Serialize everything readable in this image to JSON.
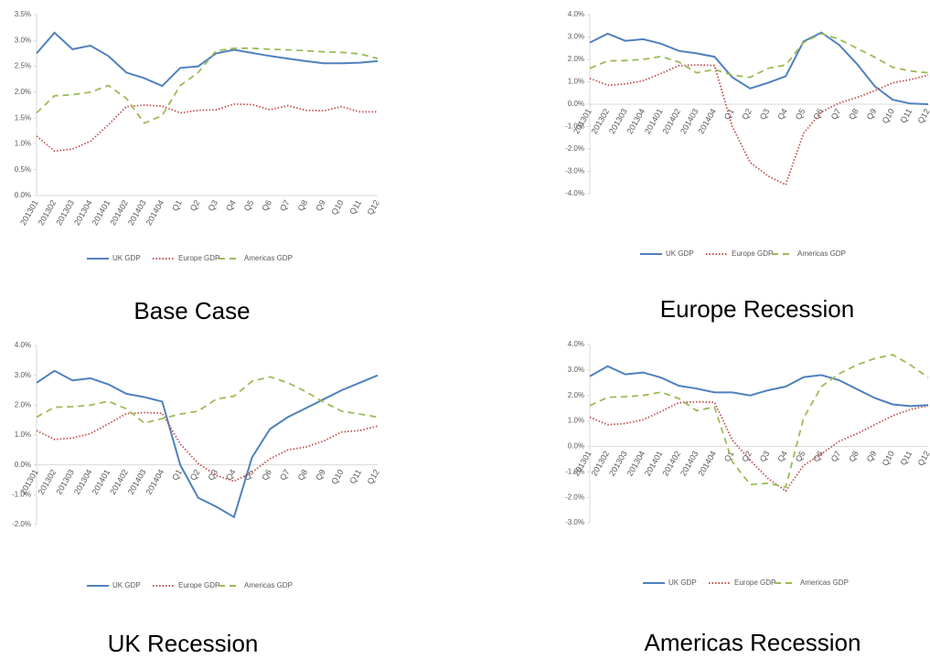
{
  "chart_data": [
    {
      "type": "line",
      "title": "Base Case",
      "categories": [
        "201301",
        "201302",
        "201303",
        "201304",
        "201401",
        "201402",
        "201403",
        "201404",
        "Q1",
        "Q2",
        "Q3",
        "Q4",
        "Q5",
        "Q6",
        "Q7",
        "Q8",
        "Q9",
        "Q10",
        "Q11",
        "Q12"
      ],
      "series": [
        {
          "name": "UK GDP",
          "color": "#4f81bd",
          "dash": "solid",
          "values": [
            2.75,
            3.15,
            2.83,
            2.9,
            2.7,
            2.38,
            2.27,
            2.12,
            2.47,
            2.5,
            2.75,
            2.82,
            2.76,
            2.7,
            2.65,
            2.6,
            2.56,
            2.56,
            2.57,
            2.6
          ]
        },
        {
          "name": "Europe GDP",
          "color": "#c0504d",
          "dash": "dotted",
          "values": [
            1.15,
            0.86,
            0.9,
            1.05,
            1.37,
            1.72,
            1.75,
            1.73,
            1.6,
            1.65,
            1.66,
            1.77,
            1.76,
            1.66,
            1.74,
            1.65,
            1.64,
            1.72,
            1.62,
            1.62
          ]
        },
        {
          "name": "Americas GDP",
          "color": "#9bbb59",
          "dash": "dashed",
          "values": [
            1.6,
            1.93,
            1.95,
            2.0,
            2.13,
            1.88,
            1.4,
            1.55,
            2.13,
            2.38,
            2.8,
            2.85,
            2.85,
            2.83,
            2.82,
            2.8,
            2.78,
            2.77,
            2.74,
            2.65
          ]
        }
      ],
      "ylim": [
        0,
        3.5
      ],
      "yticks": [
        {
          "value": 0,
          "label": "0.0%"
        },
        {
          "value": 0.5,
          "label": "0.5%"
        },
        {
          "value": 1,
          "label": "1.0%"
        },
        {
          "value": 1.5,
          "label": "1.5%"
        },
        {
          "value": 2,
          "label": "2.0%"
        },
        {
          "value": 2.5,
          "label": "2.5%"
        },
        {
          "value": 3,
          "label": "3.0%"
        },
        {
          "value": 3.5,
          "label": "3.5%"
        }
      ]
    },
    {
      "type": "line",
      "title": "Europe Recession",
      "categories": [
        "201301",
        "201302",
        "201303",
        "201304",
        "201401",
        "201402",
        "201403",
        "201404",
        "Q1",
        "Q2",
        "Q3",
        "Q4",
        "Q5",
        "Q6",
        "Q7",
        "Q8",
        "Q9",
        "Q10",
        "Q11",
        "Q12"
      ],
      "series": [
        {
          "name": "UK GDP",
          "color": "#4f81bd",
          "dash": "solid",
          "values": [
            2.75,
            3.15,
            2.83,
            2.9,
            2.7,
            2.38,
            2.27,
            2.12,
            1.2,
            0.7,
            0.95,
            1.25,
            2.8,
            3.2,
            2.65,
            1.8,
            0.8,
            0.2,
            0.03,
            0.0
          ]
        },
        {
          "name": "Europe GDP",
          "color": "#c0504d",
          "dash": "dotted",
          "values": [
            1.15,
            0.85,
            0.9,
            1.05,
            1.37,
            1.72,
            1.75,
            1.73,
            -1.0,
            -2.6,
            -3.2,
            -3.6,
            -1.3,
            -0.35,
            0.05,
            0.3,
            0.6,
            0.95,
            1.1,
            1.3
          ]
        },
        {
          "name": "Americas GDP",
          "color": "#9bbb59",
          "dash": "dashed",
          "values": [
            1.6,
            1.93,
            1.95,
            2.0,
            2.13,
            1.88,
            1.4,
            1.55,
            1.3,
            1.2,
            1.6,
            1.75,
            2.75,
            3.15,
            2.9,
            2.5,
            2.1,
            1.65,
            1.48,
            1.4
          ]
        }
      ],
      "ylim": [
        -4,
        4
      ],
      "yticks": [
        {
          "value": -4,
          "label": "-4.0%"
        },
        {
          "value": -3,
          "label": "-3.0%"
        },
        {
          "value": -2,
          "label": "-2.0%"
        },
        {
          "value": -1,
          "label": "-1.0%"
        },
        {
          "value": 0,
          "label": "0.0%"
        },
        {
          "value": 1,
          "label": "1.0%"
        },
        {
          "value": 2,
          "label": "2.0%"
        },
        {
          "value": 3,
          "label": "3.0%"
        },
        {
          "value": 4,
          "label": "4.0%"
        }
      ]
    },
    {
      "type": "line",
      "title": "UK Recession",
      "categories": [
        "201301",
        "201302",
        "201303",
        "201304",
        "201401",
        "201402",
        "201403",
        "201404",
        "Q1",
        "Q2",
        "Q3",
        "Q4",
        "Q5",
        "Q6",
        "Q7",
        "Q8",
        "Q9",
        "Q10",
        "Q11",
        "Q12"
      ],
      "series": [
        {
          "name": "UK GDP",
          "color": "#4f81bd",
          "dash": "solid",
          "values": [
            2.75,
            3.15,
            2.83,
            2.9,
            2.7,
            2.38,
            2.27,
            2.12,
            0.0,
            -1.1,
            -1.4,
            -1.75,
            0.25,
            1.2,
            1.6,
            1.9,
            2.2,
            2.5,
            2.75,
            3.0
          ]
        },
        {
          "name": "Europe GDP",
          "color": "#c0504d",
          "dash": "dotted",
          "values": [
            1.15,
            0.85,
            0.9,
            1.05,
            1.37,
            1.72,
            1.75,
            1.73,
            0.7,
            0.05,
            -0.35,
            -0.55,
            -0.25,
            0.2,
            0.5,
            0.6,
            0.8,
            1.1,
            1.15,
            1.3
          ]
        },
        {
          "name": "Americas GDP",
          "color": "#9bbb59",
          "dash": "dashed",
          "values": [
            1.6,
            1.93,
            1.95,
            2.0,
            2.13,
            1.88,
            1.4,
            1.55,
            1.7,
            1.8,
            2.2,
            2.3,
            2.8,
            2.95,
            2.75,
            2.45,
            2.1,
            1.8,
            1.7,
            1.6
          ]
        }
      ],
      "ylim": [
        -2,
        4
      ],
      "yticks": [
        {
          "value": -2,
          "label": "-2.0%"
        },
        {
          "value": -1,
          "label": "-1.0%"
        },
        {
          "value": 0,
          "label": "0.0%"
        },
        {
          "value": 1,
          "label": "1.0%"
        },
        {
          "value": 2,
          "label": "2.0%"
        },
        {
          "value": 3,
          "label": "3.0%"
        },
        {
          "value": 4,
          "label": "4.0%"
        }
      ]
    },
    {
      "type": "line",
      "title": "Americas Recession",
      "categories": [
        "201301",
        "201302",
        "201303",
        "201304",
        "201401",
        "201402",
        "201403",
        "201404",
        "Q1",
        "Q2",
        "Q3",
        "Q4",
        "Q5",
        "Q6",
        "Q7",
        "Q8",
        "Q9",
        "Q10",
        "Q11",
        "Q12"
      ],
      "series": [
        {
          "name": "UK GDP",
          "color": "#4f81bd",
          "dash": "solid",
          "values": [
            2.75,
            3.15,
            2.83,
            2.9,
            2.7,
            2.38,
            2.27,
            2.12,
            2.12,
            2.0,
            2.2,
            2.35,
            2.72,
            2.8,
            2.6,
            2.25,
            1.9,
            1.65,
            1.58,
            1.62
          ]
        },
        {
          "name": "Europe GDP",
          "color": "#c0504d",
          "dash": "dotted",
          "values": [
            1.15,
            0.85,
            0.9,
            1.05,
            1.37,
            1.72,
            1.75,
            1.73,
            0.25,
            -0.55,
            -1.25,
            -1.75,
            -0.75,
            -0.3,
            0.2,
            0.5,
            0.85,
            1.2,
            1.45,
            1.6
          ]
        },
        {
          "name": "Americas GDP",
          "color": "#9bbb59",
          "dash": "dashed",
          "values": [
            1.6,
            1.93,
            1.95,
            2.0,
            2.13,
            1.88,
            1.4,
            1.55,
            -0.6,
            -1.5,
            -1.45,
            -1.6,
            1.1,
            2.35,
            2.85,
            3.2,
            3.45,
            3.6,
            3.2,
            2.7
          ]
        }
      ],
      "ylim": [
        -3,
        4
      ],
      "yticks": [
        {
          "value": -3,
          "label": "-3.0%"
        },
        {
          "value": -2,
          "label": "-2.0%"
        },
        {
          "value": -1,
          "label": "-1.0%"
        },
        {
          "value": 0,
          "label": "0.0%"
        },
        {
          "value": 1,
          "label": "1.0%"
        },
        {
          "value": 2,
          "label": "2.0%"
        },
        {
          "value": 3,
          "label": "3.0%"
        },
        {
          "value": 4,
          "label": "4.0%"
        }
      ]
    }
  ]
}
